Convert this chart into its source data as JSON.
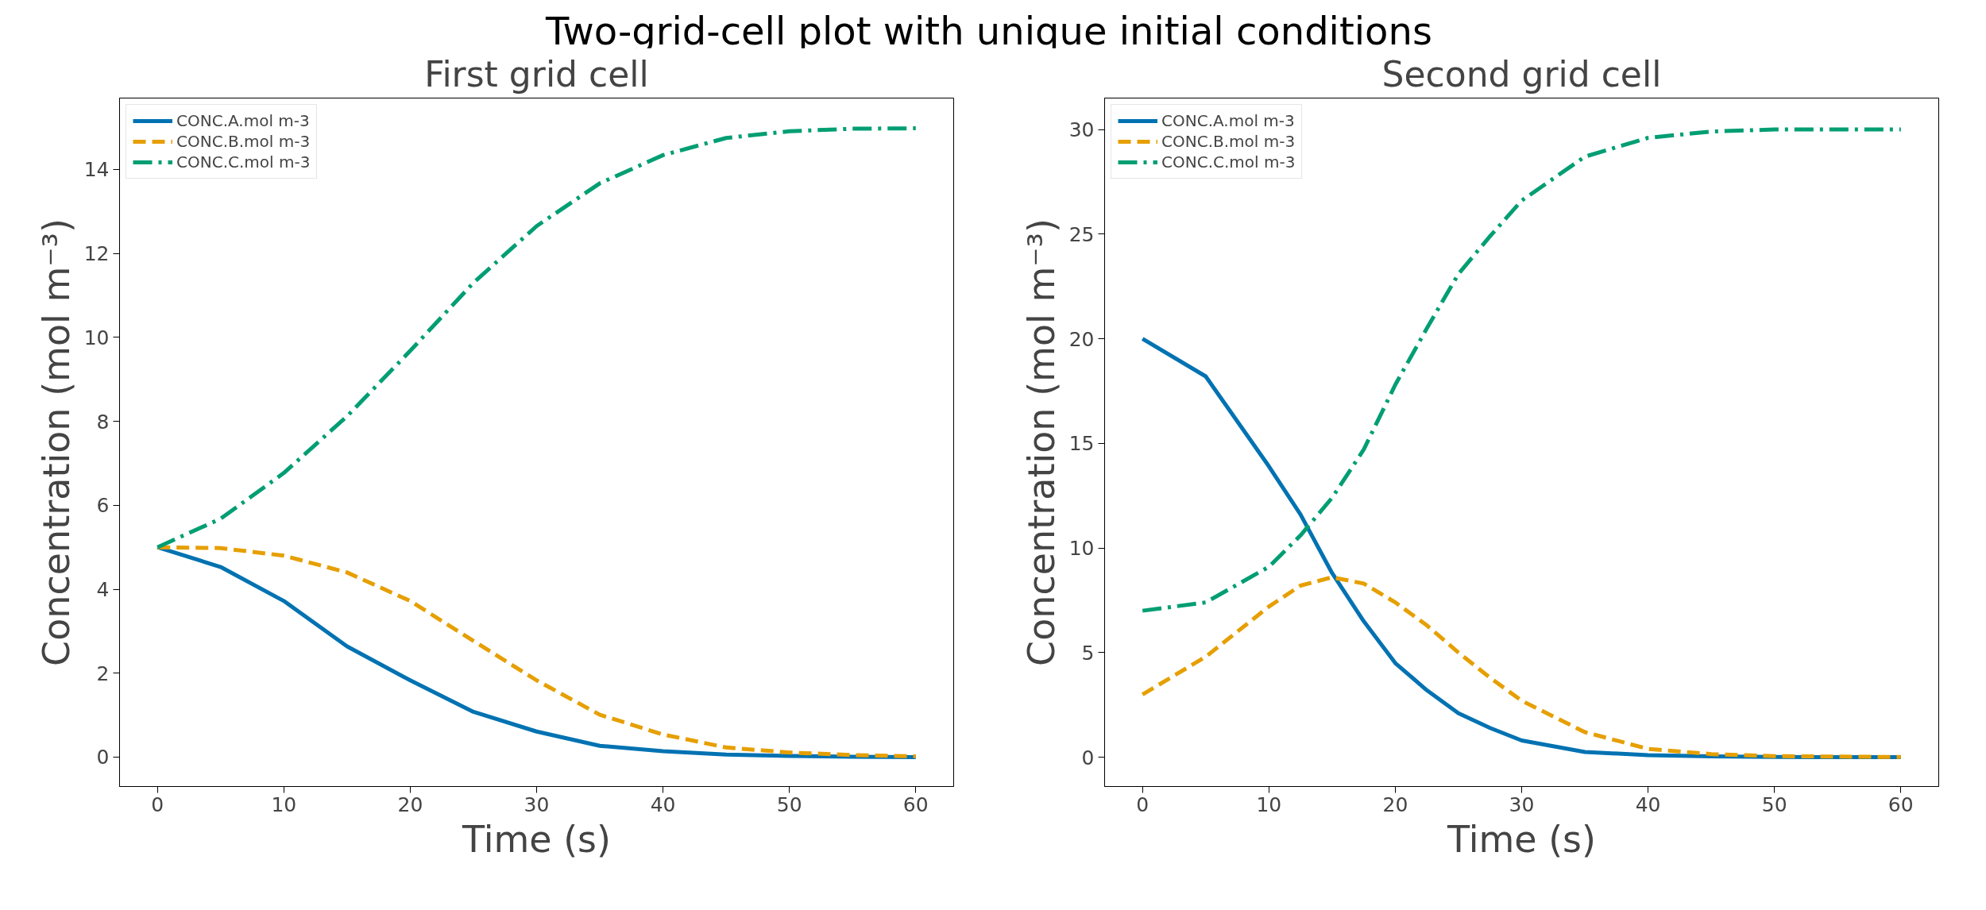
{
  "chart_data": [
    {
      "type": "line",
      "title": "First grid cell",
      "xlabel": "Time (s)",
      "ylabel": "Concentration (mol m⁻³)",
      "annotations": [
        "Two-grid-cell plot with unique initial conditions"
      ],
      "x": [
        0,
        5,
        10,
        15,
        20,
        25,
        30,
        35,
        40,
        45,
        50,
        55,
        60
      ],
      "xlim": [
        -3,
        63
      ],
      "ylim": [
        -0.7,
        15.7
      ],
      "xticks": [
        0,
        10,
        20,
        30,
        40,
        50,
        60
      ],
      "yticks": [
        0,
        2,
        4,
        6,
        8,
        10,
        12,
        14
      ],
      "grid": false,
      "legend": "top left",
      "series": [
        {
          "name": "CONC.A.mol m-3",
          "color": "#0072b2",
          "line_style": "solid",
          "values": [
            5.0,
            4.53,
            3.72,
            2.64,
            1.83,
            1.08,
            0.61,
            0.27,
            0.14,
            0.06,
            0.03,
            0.01,
            0.0
          ]
        },
        {
          "name": "CONC.B.mol m-3",
          "color": "#e69f00",
          "line_style": "dashed",
          "values": [
            5.0,
            4.98,
            4.8,
            4.4,
            3.72,
            2.77,
            1.83,
            1.01,
            0.54,
            0.23,
            0.11,
            0.05,
            0.02
          ]
        },
        {
          "name": "CONC.C.mol m-3",
          "color": "#009e73",
          "line_style": "dashdot",
          "values": [
            5.0,
            5.68,
            6.77,
            8.12,
            9.68,
            11.3,
            12.65,
            13.67,
            14.34,
            14.75,
            14.91,
            14.97,
            14.98
          ]
        }
      ]
    },
    {
      "type": "line",
      "title": "Second grid cell",
      "xlabel": "Time (s)",
      "ylabel": "Concentration (mol m⁻³)",
      "x": [
        0,
        5,
        10,
        12.5,
        15,
        17.5,
        20,
        22.5,
        25,
        27.5,
        30,
        35,
        40,
        45,
        50,
        60
      ],
      "xlim": [
        -3,
        63
      ],
      "ylim": [
        -1.4,
        31.5
      ],
      "xticks": [
        0,
        10,
        20,
        30,
        40,
        50,
        60
      ],
      "yticks": [
        0,
        5,
        10,
        15,
        20,
        25,
        30
      ],
      "grid": false,
      "legend": "top left",
      "series": [
        {
          "name": "CONC.A.mol m-3",
          "color": "#0072b2",
          "line_style": "solid",
          "values": [
            20.0,
            18.2,
            13.9,
            11.6,
            8.8,
            6.5,
            4.5,
            3.2,
            2.1,
            1.4,
            0.8,
            0.25,
            0.1,
            0.04,
            0.01,
            0.0
          ]
        },
        {
          "name": "CONC.B.mol m-3",
          "color": "#e69f00",
          "line_style": "dashed",
          "values": [
            3.0,
            4.8,
            7.2,
            8.2,
            8.6,
            8.3,
            7.4,
            6.3,
            5.0,
            3.8,
            2.7,
            1.2,
            0.4,
            0.15,
            0.05,
            0.01
          ]
        },
        {
          "name": "CONC.C.mol m-3",
          "color": "#009e73",
          "line_style": "dashdot",
          "values": [
            7.0,
            7.4,
            9.1,
            10.6,
            12.4,
            14.7,
            17.8,
            20.5,
            23.1,
            24.9,
            26.6,
            28.7,
            29.6,
            29.9,
            30.0,
            30.0
          ]
        }
      ]
    }
  ]
}
